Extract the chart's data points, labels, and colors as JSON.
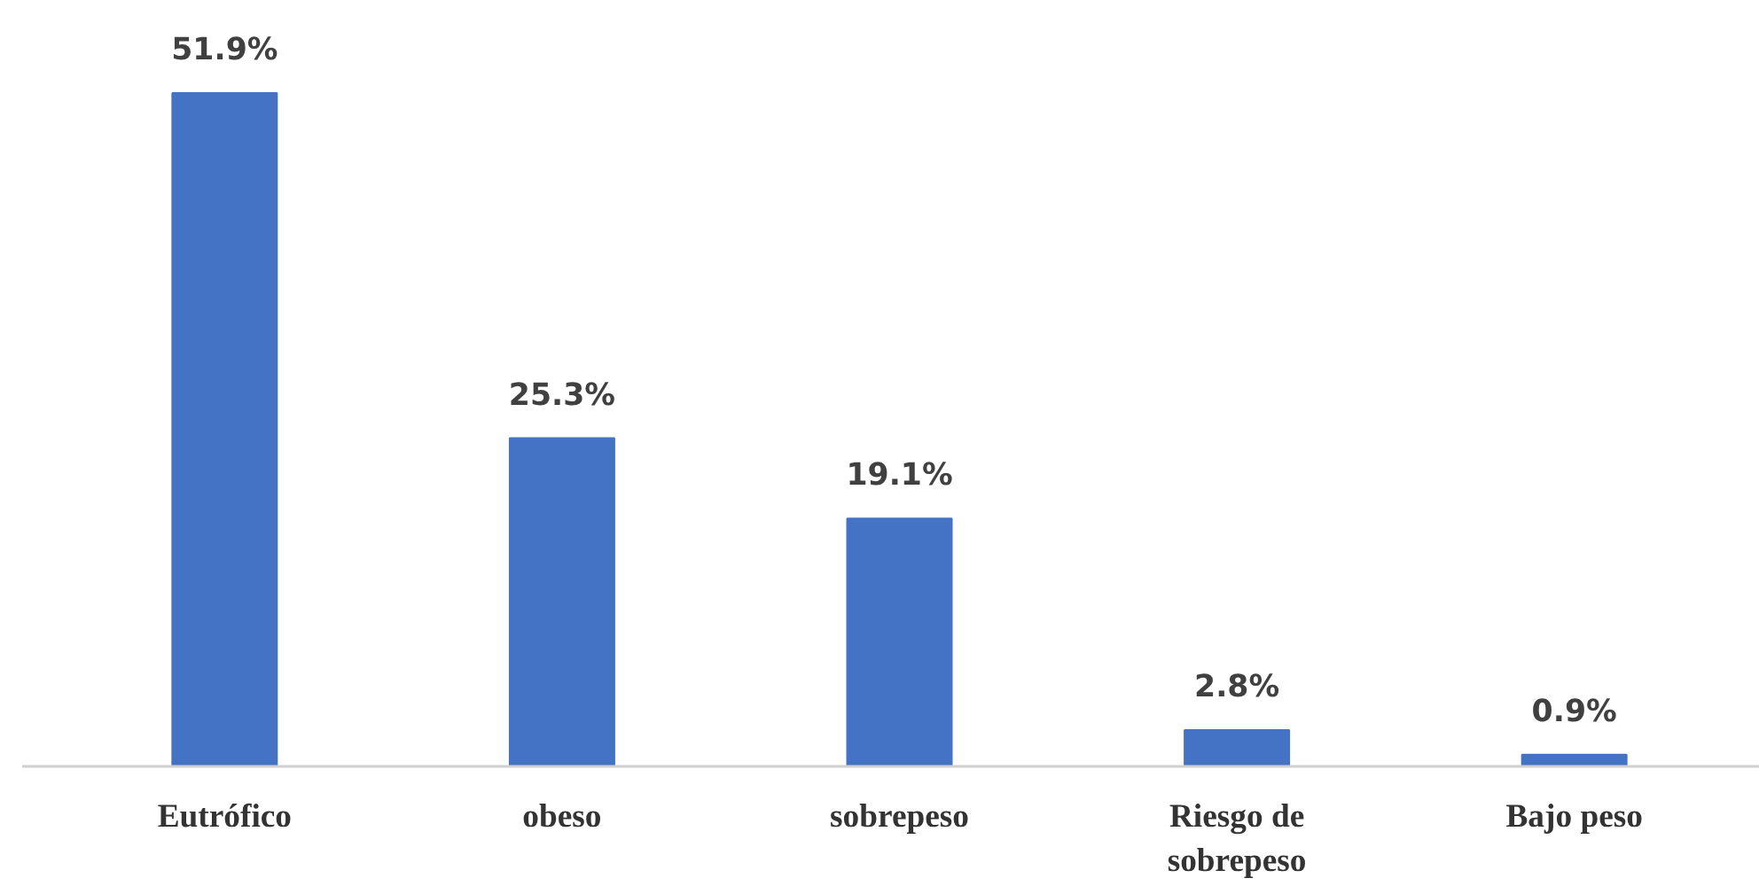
{
  "chart_data": {
    "type": "bar",
    "categories": [
      "Eutrófico",
      "obeso",
      "sobrepeso",
      "Riesgo de sobrepeso",
      "Bajo peso"
    ],
    "values": [
      51.9,
      25.3,
      19.1,
      2.8,
      0.9
    ],
    "value_labels": [
      "51.9%",
      "25.3%",
      "19.1%",
      "2.8%",
      "0.9%"
    ],
    "color": "#4472c4",
    "grid": false
  }
}
